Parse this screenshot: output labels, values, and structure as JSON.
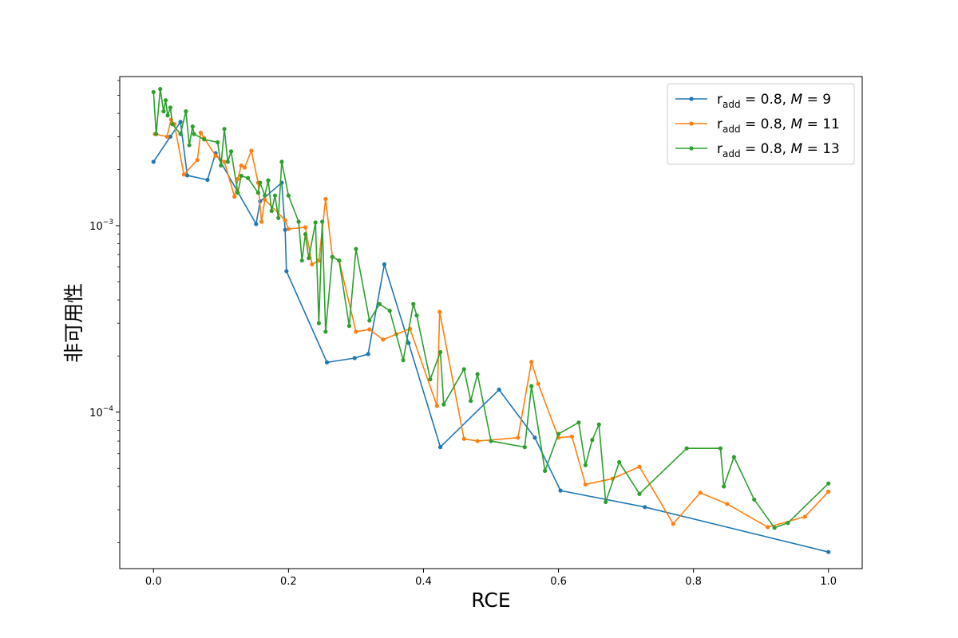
{
  "chart_data": {
    "type": "line",
    "title": "",
    "xlabel": "RCE",
    "ylabel": "非可用性",
    "xlim": [
      -0.05,
      1.05
    ],
    "ylim": [
      1.45e-05,
      0.0063
    ],
    "yscale": "log",
    "grid": false,
    "legend_position": "upper right",
    "x_ticks": [
      0.0,
      0.2,
      0.4,
      0.6,
      0.8,
      1.0
    ],
    "x_tick_labels": [
      "0.0",
      "0.2",
      "0.4",
      "0.6",
      "0.8",
      "1.0"
    ],
    "y_ticks": [
      0.001,
      0.0001
    ],
    "y_tick_labels": [
      "10^-3",
      "10^-4"
    ],
    "series": [
      {
        "name": "r_add = 0.8, M = 9",
        "legend_r": "r",
        "legend_sub": "add",
        "legend_rest": " = 0.8, ",
        "legend_m": "M",
        "legend_val": " = 9",
        "color": "#1f77b4",
        "x": [
          0.0,
          0.025,
          0.04,
          0.05,
          0.08,
          0.092,
          0.152,
          0.158,
          0.19,
          0.195,
          0.197,
          0.257,
          0.298,
          0.318,
          0.342,
          0.378,
          0.425,
          0.512,
          0.565,
          0.603,
          0.728,
          1.0
        ],
        "y": [
          0.0022,
          0.003,
          0.0036,
          0.00186,
          0.00176,
          0.00245,
          0.00102,
          0.00135,
          0.0017,
          0.00095,
          0.00057,
          0.000185,
          0.000195,
          0.000205,
          0.00062,
          0.000235,
          6.5e-05,
          0.000132,
          7.3e-05,
          3.8e-05,
          3.1e-05,
          1.78e-05
        ]
      },
      {
        "name": "r_add = 0.8, M = 11",
        "legend_r": "r",
        "legend_sub": "add",
        "legend_rest": " = 0.8, ",
        "legend_m": "M",
        "legend_val": " = 11",
        "color": "#ff7f0e",
        "x": [
          0.002,
          0.02,
          0.026,
          0.031,
          0.045,
          0.065,
          0.07,
          0.075,
          0.092,
          0.105,
          0.12,
          0.125,
          0.13,
          0.135,
          0.145,
          0.155,
          0.16,
          0.165,
          0.195,
          0.2,
          0.225,
          0.235,
          0.245,
          0.255,
          0.265,
          0.275,
          0.3,
          0.32,
          0.34,
          0.36,
          0.38,
          0.42,
          0.424,
          0.46,
          0.48,
          0.54,
          0.56,
          0.57,
          0.6,
          0.62,
          0.64,
          0.68,
          0.72,
          0.77,
          0.81,
          0.85,
          0.91,
          0.965,
          1.0
        ],
        "y": [
          0.0031,
          0.003,
          0.0037,
          0.0035,
          0.00188,
          0.00225,
          0.00315,
          0.00295,
          0.00237,
          0.0022,
          0.00143,
          0.00178,
          0.0021,
          0.00205,
          0.00252,
          0.0017,
          0.00105,
          0.00138,
          0.00107,
          0.00096,
          0.00098,
          0.00062,
          0.00065,
          0.00139,
          0.00068,
          0.00065,
          0.00027,
          0.000278,
          0.000245,
          0.000262,
          0.00028,
          0.000108,
          0.000345,
          7.2e-05,
          7e-05,
          7.3e-05,
          0.000186,
          0.000142,
          7.3e-05,
          7.4e-05,
          4.1e-05,
          4.4e-05,
          5.1e-05,
          2.52e-05,
          3.7e-05,
          3.22e-05,
          2.42e-05,
          2.75e-05,
          3.75e-05
        ]
      },
      {
        "name": "r_add = 0.8, M = 13",
        "legend_r": "r",
        "legend_sub": "add",
        "legend_rest": " = 0.8, ",
        "legend_m": "M",
        "legend_val": " = 13",
        "color": "#2ca02c",
        "x": [
          0.0,
          0.004,
          0.01,
          0.015,
          0.018,
          0.021,
          0.025,
          0.028,
          0.04,
          0.048,
          0.053,
          0.058,
          0.06,
          0.075,
          0.095,
          0.1,
          0.105,
          0.11,
          0.115,
          0.125,
          0.13,
          0.14,
          0.155,
          0.158,
          0.165,
          0.17,
          0.175,
          0.18,
          0.185,
          0.19,
          0.2,
          0.215,
          0.22,
          0.225,
          0.23,
          0.24,
          0.245,
          0.25,
          0.255,
          0.265,
          0.275,
          0.29,
          0.3,
          0.32,
          0.335,
          0.35,
          0.37,
          0.385,
          0.39,
          0.41,
          0.425,
          0.43,
          0.46,
          0.47,
          0.48,
          0.5,
          0.55,
          0.56,
          0.58,
          0.6,
          0.63,
          0.64,
          0.65,
          0.66,
          0.67,
          0.69,
          0.72,
          0.79,
          0.84,
          0.845,
          0.86,
          0.89,
          0.92,
          0.94,
          1.0
        ],
        "y": [
          0.0052,
          0.0031,
          0.0054,
          0.0041,
          0.0047,
          0.0039,
          0.0043,
          0.0035,
          0.0031,
          0.0041,
          0.0027,
          0.0034,
          0.0031,
          0.0029,
          0.0028,
          0.0021,
          0.0033,
          0.0022,
          0.0025,
          0.0015,
          0.00185,
          0.0018,
          0.0015,
          0.0017,
          0.00145,
          0.00175,
          0.0012,
          0.00145,
          0.0011,
          0.0022,
          0.00145,
          0.00105,
          0.00065,
          0.0009,
          0.00067,
          0.00104,
          0.0003,
          0.00105,
          0.00027,
          0.00068,
          0.00065,
          0.00029,
          0.00075,
          0.00031,
          0.00038,
          0.00035,
          0.00019,
          0.00038,
          0.00033,
          0.00015,
          0.00021,
          0.00011,
          0.00017,
          0.000115,
          0.00016,
          7e-05,
          6.5e-05,
          0.000138,
          4.85e-05,
          7.65e-05,
          8.8e-05,
          5.2e-05,
          7.1e-05,
          8.6e-05,
          3.3e-05,
          5.4e-05,
          3.65e-05,
          6.4e-05,
          6.4e-05,
          4e-05,
          5.75e-05,
          3.4e-05,
          2.4e-05,
          2.55e-05,
          4.15e-05
        ]
      }
    ]
  }
}
